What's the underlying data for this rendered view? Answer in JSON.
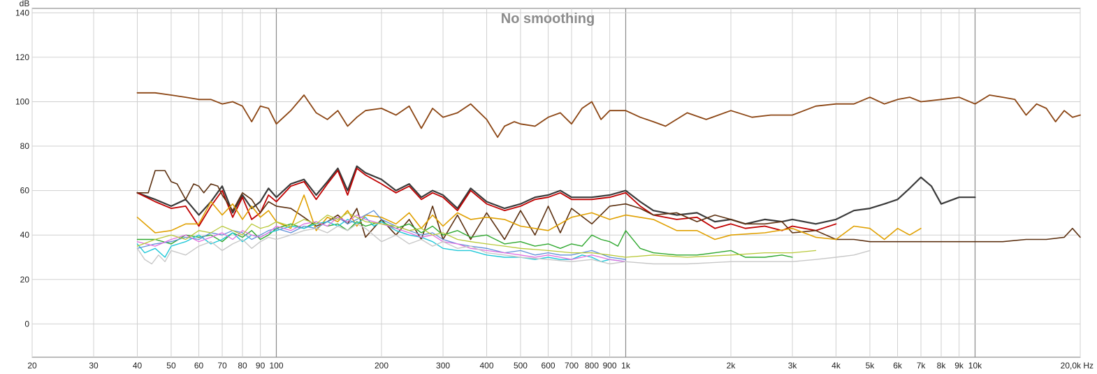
{
  "chart_data": {
    "type": "line",
    "title": "No smoothing",
    "ylabel": "dB",
    "xunit": "Hz",
    "xscale": "log",
    "xlim": [
      20,
      20000
    ],
    "ylim": [
      -15,
      142
    ],
    "grid": true,
    "y_ticks": [
      140,
      120,
      100,
      80,
      60,
      40,
      20,
      0
    ],
    "x_ticks": [
      {
        "v": 20,
        "label": "20"
      },
      {
        "v": 30,
        "label": "30"
      },
      {
        "v": 40,
        "label": "40"
      },
      {
        "v": 50,
        "label": "50"
      },
      {
        "v": 60,
        "label": "60"
      },
      {
        "v": 70,
        "label": "70"
      },
      {
        "v": 80,
        "label": "80"
      },
      {
        "v": 90,
        "label": "90"
      },
      {
        "v": 100,
        "label": "100"
      },
      {
        "v": 200,
        "label": "200"
      },
      {
        "v": 300,
        "label": "300"
      },
      {
        "v": 400,
        "label": "400"
      },
      {
        "v": 500,
        "label": "500"
      },
      {
        "v": 600,
        "label": "600"
      },
      {
        "v": 700,
        "label": "700"
      },
      {
        "v": 800,
        "label": "800"
      },
      {
        "v": 900,
        "label": "900"
      },
      {
        "v": 1000,
        "label": "1k"
      },
      {
        "v": 2000,
        "label": "2k"
      },
      {
        "v": 3000,
        "label": "3k"
      },
      {
        "v": 4000,
        "label": "4k"
      },
      {
        "v": 5000,
        "label": "5k"
      },
      {
        "v": 6000,
        "label": "6k"
      },
      {
        "v": 7000,
        "label": "7k"
      },
      {
        "v": 8000,
        "label": "8k"
      },
      {
        "v": 9000,
        "label": "9k"
      },
      {
        "v": 10000,
        "label": "10k"
      },
      {
        "v": 20000,
        "label": "20,0k Hz"
      }
    ],
    "series": [
      {
        "color": "#8b4513",
        "width": 1.8,
        "x": [
          40,
          45,
          50,
          55,
          60,
          65,
          70,
          75,
          80,
          85,
          90,
          95,
          100,
          110,
          120,
          130,
          140,
          150,
          160,
          170,
          180,
          200,
          220,
          240,
          260,
          280,
          300,
          330,
          360,
          400,
          430,
          450,
          480,
          500,
          550,
          600,
          650,
          700,
          750,
          800,
          850,
          900,
          1000,
          1100,
          1200,
          1300,
          1500,
          1700,
          2000,
          2300,
          2600,
          3000,
          3500,
          4000,
          4500,
          5000,
          5500,
          6000,
          6500,
          7000,
          8000,
          9000,
          10000,
          11000,
          12000,
          13000,
          14000,
          15000,
          16000,
          17000,
          18000,
          19000,
          20000
        ],
        "y": [
          104,
          104,
          103,
          102,
          101,
          101,
          99,
          100,
          98,
          91,
          98,
          97,
          90,
          96,
          103,
          95,
          92,
          96,
          89,
          93,
          96,
          97,
          94,
          98,
          88,
          97,
          93,
          95,
          99,
          92,
          84,
          89,
          91,
          90,
          89,
          93,
          95,
          90,
          97,
          100,
          92,
          96,
          96,
          93,
          91,
          89,
          95,
          92,
          96,
          93,
          94,
          94,
          98,
          99,
          99,
          102,
          99,
          101,
          102,
          100,
          101,
          102,
          99,
          103,
          102,
          101,
          94,
          99,
          97,
          91,
          96,
          93,
          94
        ]
      },
      {
        "color": "#3a3a3a",
        "width": 2.2,
        "x": [
          40,
          45,
          50,
          55,
          60,
          65,
          70,
          75,
          80,
          85,
          90,
          95,
          100,
          110,
          120,
          130,
          140,
          150,
          160,
          170,
          180,
          200,
          220,
          240,
          260,
          280,
          300,
          330,
          360,
          400,
          450,
          500,
          550,
          600,
          650,
          700,
          800,
          900,
          1000,
          1100,
          1200,
          1400,
          1600,
          1800,
          2000,
          2200,
          2500,
          2800,
          3000,
          3500,
          4000,
          4500,
          5000,
          5500,
          6000,
          6500,
          7000,
          7500,
          8000,
          9000,
          10000
        ],
        "y": [
          59,
          56,
          53,
          56,
          49,
          55,
          62,
          50,
          58,
          52,
          55,
          61,
          57,
          63,
          65,
          58,
          64,
          70,
          60,
          71,
          68,
          65,
          60,
          63,
          57,
          60,
          58,
          52,
          61,
          55,
          52,
          54,
          57,
          58,
          60,
          57,
          57,
          58,
          60,
          55,
          51,
          49,
          50,
          46,
          47,
          45,
          47,
          46,
          47,
          45,
          47,
          51,
          52,
          54,
          56,
          61,
          66,
          62,
          54,
          57,
          57
        ]
      },
      {
        "color": "#c00000",
        "width": 1.8,
        "x": [
          40,
          45,
          50,
          55,
          60,
          65,
          70,
          75,
          80,
          85,
          90,
          95,
          100,
          110,
          120,
          130,
          140,
          150,
          160,
          170,
          180,
          200,
          220,
          240,
          260,
          280,
          300,
          330,
          360,
          400,
          450,
          500,
          550,
          600,
          650,
          700,
          800,
          900,
          1000,
          1100,
          1200,
          1400,
          1600,
          1800,
          2000,
          2200,
          2500,
          2800,
          3000,
          3500,
          4000
        ],
        "y": [
          59,
          55,
          52,
          53,
          44,
          53,
          60,
          48,
          57,
          47,
          50,
          58,
          55,
          62,
          64,
          56,
          63,
          69,
          58,
          70,
          67,
          63,
          59,
          62,
          56,
          59,
          57,
          51,
          60,
          54,
          51,
          53,
          56,
          57,
          59,
          56,
          56,
          57,
          59,
          53,
          49,
          47,
          48,
          43,
          45,
          43,
          44,
          42,
          44,
          42,
          45
        ]
      },
      {
        "color": "#5c3010",
        "width": 1.6,
        "x": [
          40,
          43,
          45,
          48,
          50,
          52,
          55,
          58,
          60,
          62,
          65,
          68,
          70,
          75,
          80,
          85,
          90,
          95,
          100,
          110,
          120,
          130,
          140,
          150,
          160,
          170,
          180,
          200,
          220,
          240,
          260,
          280,
          300,
          330,
          360,
          400,
          450,
          500,
          550,
          600,
          650,
          700,
          800,
          900,
          1000,
          1100,
          1200,
          1400,
          1600,
          1800,
          2000,
          2200,
          2500,
          2800,
          3000,
          3500,
          4000,
          4500,
          5000,
          6000,
          7000,
          8000,
          9000,
          10000,
          12000,
          14000,
          16000,
          18000,
          19000,
          20000
        ],
        "y": [
          59,
          59,
          69,
          69,
          64,
          63,
          56,
          63,
          62,
          59,
          63,
          62,
          58,
          51,
          59,
          56,
          50,
          55,
          53,
          52,
          48,
          44,
          46,
          49,
          45,
          52,
          39,
          47,
          40,
          47,
          38,
          53,
          38,
          49,
          38,
          50,
          38,
          51,
          40,
          53,
          41,
          52,
          45,
          53,
          54,
          52,
          49,
          50,
          46,
          49,
          47,
          45,
          45,
          46,
          41,
          42,
          38,
          38,
          37,
          37,
          37,
          37,
          37,
          37,
          37,
          38,
          38,
          39,
          43,
          39
        ]
      },
      {
        "color": "#e0a000",
        "width": 1.6,
        "x": [
          40,
          45,
          50,
          55,
          60,
          65,
          70,
          75,
          80,
          85,
          90,
          95,
          100,
          110,
          120,
          130,
          140,
          150,
          160,
          170,
          180,
          200,
          220,
          240,
          260,
          280,
          300,
          330,
          360,
          400,
          450,
          500,
          600,
          700,
          800,
          900,
          1000,
          1200,
          1400,
          1600,
          1800,
          2000,
          2500,
          3000,
          3500,
          4000,
          4500,
          5000,
          5500,
          6000,
          6500,
          7000
        ],
        "y": [
          48,
          41,
          42,
          45,
          45,
          55,
          49,
          54,
          47,
          53,
          48,
          51,
          46,
          43,
          58,
          42,
          48,
          46,
          51,
          44,
          49,
          48,
          45,
          50,
          43,
          49,
          44,
          50,
          47,
          48,
          47,
          44,
          42,
          48,
          50,
          47,
          49,
          47,
          42,
          42,
          38,
          40,
          41,
          43,
          39,
          38,
          44,
          43,
          38,
          43,
          40,
          43
        ]
      },
      {
        "color": "#2fa82f",
        "width": 1.4,
        "x": [
          40,
          45,
          50,
          55,
          60,
          65,
          70,
          75,
          80,
          85,
          90,
          95,
          100,
          110,
          120,
          130,
          140,
          150,
          160,
          170,
          180,
          200,
          220,
          240,
          260,
          280,
          300,
          330,
          360,
          400,
          450,
          500,
          550,
          600,
          650,
          700,
          750,
          800,
          850,
          900,
          950,
          1000,
          1100,
          1200,
          1400,
          1600,
          1800,
          2000,
          2200,
          2500,
          2800,
          3000
        ],
        "y": [
          38,
          38,
          36,
          40,
          39,
          40,
          37,
          41,
          39,
          42,
          38,
          40,
          43,
          45,
          43,
          46,
          44,
          45,
          42,
          46,
          44,
          46,
          43,
          45,
          41,
          44,
          40,
          42,
          39,
          40,
          36,
          37,
          35,
          36,
          34,
          36,
          35,
          40,
          38,
          37,
          35,
          42,
          34,
          32,
          31,
          31,
          32,
          33,
          30,
          30,
          31,
          30
        ]
      },
      {
        "color": "#20c8d8",
        "width": 1.4,
        "x": [
          40,
          42,
          45,
          48,
          50,
          55,
          60,
          65,
          70,
          75,
          80,
          85,
          90,
          95,
          100,
          110,
          120,
          130,
          140,
          150,
          160,
          170,
          180,
          190,
          200,
          220,
          240,
          260,
          280,
          300,
          330,
          360,
          400,
          450,
          500,
          550,
          600,
          650,
          700,
          750,
          800,
          850,
          900,
          1000
        ],
        "y": [
          36,
          32,
          34,
          30,
          35,
          37,
          40,
          36,
          38,
          41,
          37,
          40,
          39,
          41,
          42,
          44,
          43,
          45,
          46,
          44,
          47,
          45,
          48,
          44,
          46,
          42,
          40,
          39,
          37,
          34,
          33,
          33,
          31,
          30,
          30,
          29,
          30,
          29,
          29,
          31,
          30,
          28,
          29,
          28
        ]
      },
      {
        "color": "#6090d8",
        "width": 1.3,
        "x": [
          40,
          45,
          50,
          55,
          60,
          65,
          70,
          75,
          80,
          85,
          90,
          95,
          100,
          110,
          120,
          130,
          140,
          150,
          160,
          170,
          180,
          190,
          200,
          220,
          240,
          260,
          280,
          300,
          330,
          360,
          400,
          450,
          500,
          550,
          600,
          650,
          700,
          800,
          900,
          1000
        ],
        "y": [
          34,
          36,
          37,
          39,
          38,
          41,
          40,
          42,
          41,
          38,
          40,
          42,
          43,
          41,
          44,
          43,
          46,
          48,
          45,
          47,
          49,
          51,
          47,
          44,
          42,
          40,
          41,
          38,
          36,
          35,
          34,
          32,
          33,
          31,
          32,
          31,
          31,
          33,
          30,
          29
        ]
      },
      {
        "color": "#e070e0",
        "width": 1.3,
        "x": [
          40,
          45,
          50,
          55,
          60,
          65,
          70,
          75,
          80,
          85,
          90,
          95,
          100,
          110,
          120,
          130,
          140,
          150,
          160,
          170,
          180,
          200,
          220,
          240,
          260,
          280,
          300,
          330,
          360,
          400,
          450,
          500,
          550,
          600,
          650,
          700,
          800,
          900,
          1000
        ],
        "y": [
          37,
          35,
          38,
          40,
          37,
          39,
          41,
          38,
          42,
          40,
          39,
          41,
          44,
          42,
          45,
          46,
          44,
          48,
          46,
          49,
          47,
          45,
          43,
          41,
          39,
          40,
          37,
          36,
          34,
          33,
          32,
          31,
          30,
          31,
          30,
          29,
          31,
          29,
          28
        ]
      },
      {
        "color": "#b8c838",
        "width": 1.3,
        "x": [
          40,
          45,
          50,
          55,
          60,
          65,
          70,
          75,
          80,
          85,
          90,
          95,
          100,
          110,
          120,
          130,
          140,
          150,
          160,
          170,
          180,
          200,
          220,
          240,
          260,
          280,
          300,
          330,
          360,
          400,
          450,
          500,
          600,
          700,
          800,
          900,
          1000,
          1200,
          1500,
          2000,
          2500,
          3000,
          3500
        ],
        "y": [
          35,
          38,
          40,
          38,
          42,
          41,
          44,
          42,
          40,
          45,
          43,
          44,
          46,
          44,
          47,
          45,
          49,
          47,
          50,
          48,
          46,
          45,
          44,
          42,
          43,
          40,
          41,
          38,
          37,
          36,
          35,
          34,
          33,
          32,
          32,
          31,
          30,
          31,
          30,
          31,
          32,
          32,
          33
        ]
      },
      {
        "color": "#c8c8c8",
        "width": 1.4,
        "x": [
          40,
          42,
          44,
          46,
          48,
          50,
          55,
          60,
          65,
          70,
          75,
          80,
          85,
          90,
          95,
          100,
          110,
          120,
          130,
          140,
          150,
          160,
          170,
          180,
          200,
          220,
          240,
          260,
          280,
          300,
          330,
          360,
          400,
          450,
          500,
          600,
          700,
          800,
          900,
          1000,
          1200,
          1500,
          2000,
          2500,
          3000,
          3500,
          4000,
          4500,
          5000
        ],
        "y": [
          34,
          29,
          27,
          31,
          28,
          33,
          31,
          35,
          37,
          33,
          36,
          38,
          34,
          37,
          39,
          38,
          40,
          42,
          43,
          41,
          44,
          42,
          45,
          43,
          37,
          40,
          36,
          38,
          35,
          37,
          34,
          35,
          32,
          31,
          30,
          29,
          28,
          29,
          27,
          28,
          27,
          27,
          28,
          28,
          28,
          29,
          30,
          31,
          33
        ]
      }
    ]
  }
}
